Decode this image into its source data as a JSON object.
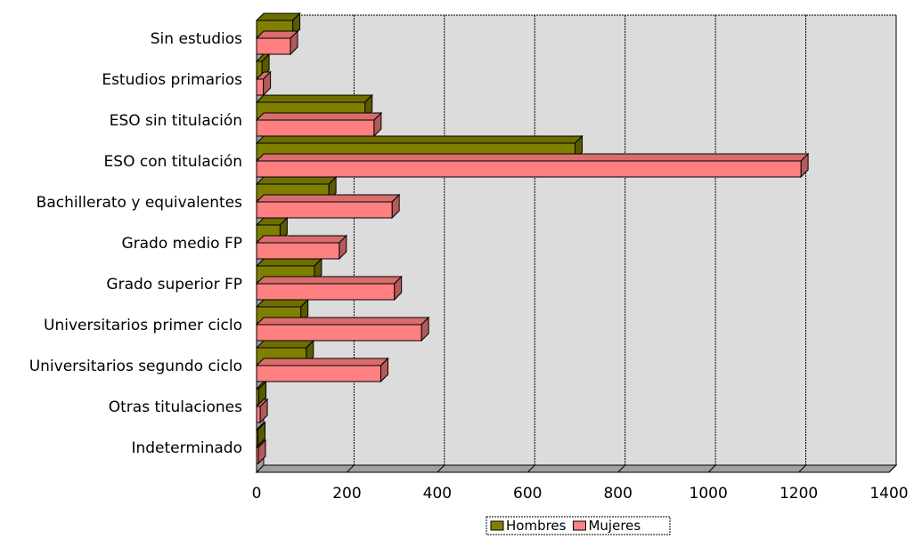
{
  "chart_data": {
    "type": "bar",
    "orientation": "horizontal",
    "style": "3d",
    "categories": [
      "Sin estudios",
      "Estudios primarios",
      "ESO sin titulación",
      "ESO con titulación",
      "Bachillerato y equivalentes",
      "Grado medio FP",
      "Grado superior FP",
      "Universitarios primer ciclo",
      "Universitarios segundo ciclo",
      "Otras titulaciones",
      "Indeterminado"
    ],
    "series": [
      {
        "name": "Hombres",
        "color": "#808000",
        "values": [
          80,
          12,
          240,
          705,
          160,
          52,
          128,
          98,
          110,
          5,
          3
        ]
      },
      {
        "name": "Mujeres",
        "color": "#ff8080",
        "values": [
          75,
          15,
          260,
          1205,
          300,
          183,
          305,
          365,
          275,
          8,
          4
        ]
      }
    ],
    "xlim": [
      0,
      1400
    ],
    "xticks": [
      0,
      200,
      400,
      600,
      800,
      1000,
      1200,
      1400
    ],
    "xlabel": "",
    "ylabel": "",
    "title": "",
    "grid": true,
    "legend_position": "bottom",
    "plot_background": "#dcdcdc"
  }
}
